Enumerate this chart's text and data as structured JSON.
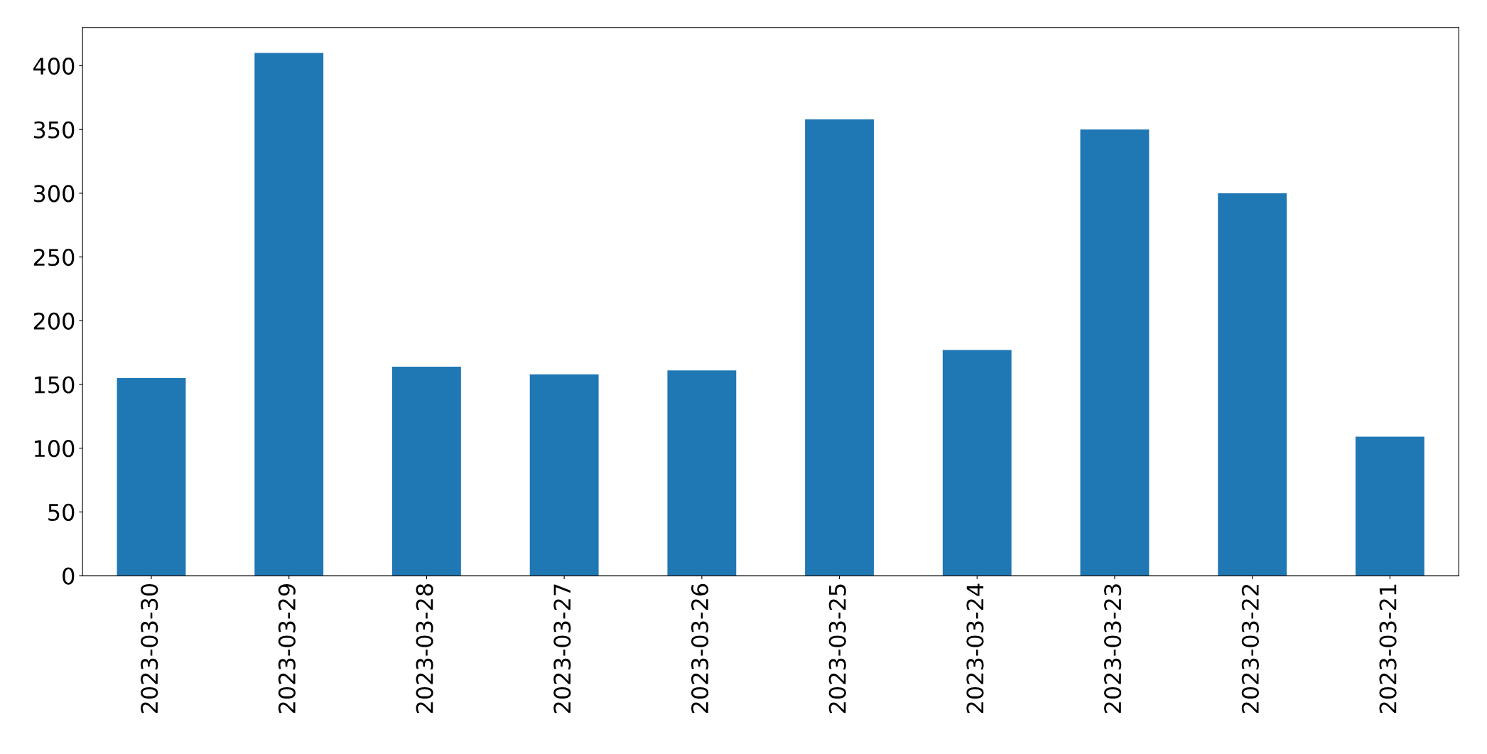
{
  "chart_data": {
    "type": "bar",
    "categories": [
      "2023-03-30",
      "2023-03-29",
      "2023-03-28",
      "2023-03-27",
      "2023-03-26",
      "2023-03-25",
      "2023-03-24",
      "2023-03-23",
      "2023-03-22",
      "2023-03-21"
    ],
    "values": [
      155,
      410,
      164,
      158,
      161,
      358,
      177,
      350,
      300,
      109
    ],
    "color": "#1f77b4",
    "ylim": [
      0,
      430
    ],
    "yticks": [
      0,
      50,
      100,
      150,
      200,
      250,
      300,
      350,
      400
    ],
    "grid": false,
    "legend": false
  }
}
